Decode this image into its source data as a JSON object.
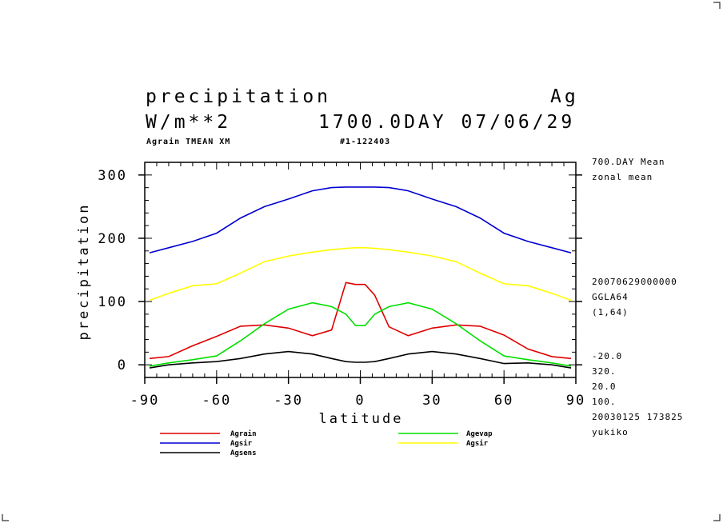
{
  "header": {
    "title": "precipitation",
    "code": "Ag",
    "unit": "W/m**2",
    "time": "1700.0DAY 07/06/29",
    "variable_info": "Agrain TMEAN XM",
    "run_id": "#1-122403"
  },
  "side_info": {
    "mean": "700.DAY Mean",
    "zonal": "zonal mean",
    "date_code": "20070629000000",
    "grid": "GGLA64",
    "index": "(1,64)",
    "v1": "-20.0",
    "v2": "320.",
    "v3": "20.0",
    "v4": "100.",
    "stamp": "20030125 173825",
    "user": "yukiko"
  },
  "chart_data": {
    "type": "line",
    "xlabel": "latitude",
    "ylabel": "precipitation",
    "xlim": [
      -90,
      90
    ],
    "ylim": [
      -20,
      320
    ],
    "xticks": [
      "-90",
      "-60",
      "-30",
      "0",
      "30",
      "60",
      "90"
    ],
    "yticks": [
      "0",
      "100",
      "200",
      "300"
    ],
    "x": [
      -88,
      -80,
      -70,
      -60,
      -50,
      -40,
      -30,
      -20,
      -12,
      -6,
      -2,
      2,
      6,
      12,
      20,
      30,
      40,
      50,
      60,
      70,
      80,
      88
    ],
    "series": [
      {
        "name": "Agrain",
        "color": "#e00000",
        "values": [
          10,
          13,
          30,
          45,
          61,
          63,
          58,
          46,
          55,
          130,
          127,
          127,
          110,
          60,
          46,
          58,
          63,
          61,
          47,
          25,
          13,
          10
        ]
      },
      {
        "name": "Agevap",
        "color": "#00e000",
        "values": [
          -2,
          3,
          8,
          14,
          38,
          65,
          88,
          98,
          92,
          80,
          62,
          62,
          80,
          92,
          98,
          88,
          65,
          38,
          14,
          8,
          3,
          -2
        ]
      },
      {
        "name": "Agsir",
        "color": "#0000d0",
        "values": [
          177,
          185,
          195,
          208,
          232,
          250,
          262,
          275,
          280,
          281,
          281,
          281,
          281,
          280,
          275,
          262,
          250,
          232,
          208,
          195,
          185,
          177
        ]
      },
      {
        "name": "Agsir",
        "color": "#ffff00",
        "values": [
          102,
          113,
          125,
          128,
          145,
          163,
          172,
          178,
          182,
          184,
          185,
          185,
          184,
          182,
          178,
          172,
          163,
          145,
          128,
          125,
          113,
          102
        ]
      },
      {
        "name": "Agsens",
        "color": "#000000",
        "values": [
          -5,
          0,
          3,
          5,
          10,
          17,
          21,
          17,
          10,
          5,
          4,
          4,
          5,
          10,
          17,
          21,
          17,
          10,
          2,
          3,
          0,
          -5
        ]
      }
    ]
  }
}
